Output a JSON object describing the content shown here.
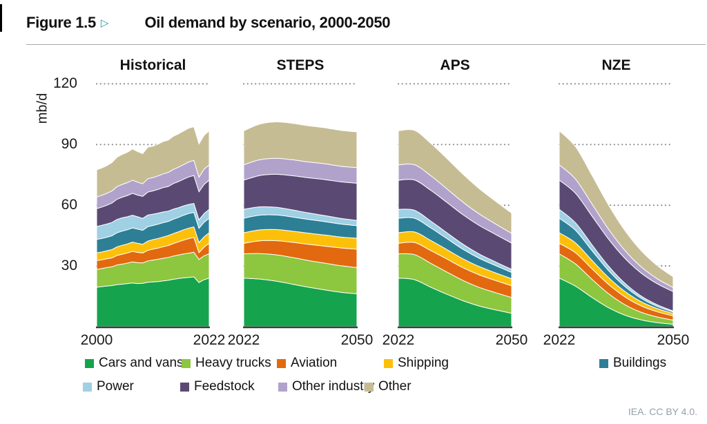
{
  "header": {
    "figure_label": "Figure 1.5",
    "figure_marker": "▷",
    "title": "Oil demand by scenario, 2000-2050"
  },
  "axis": {
    "unit_label": "mb/d",
    "ticks": [
      120,
      90,
      60,
      30
    ]
  },
  "footer": {
    "attribution": "IEA. CC BY 4.0."
  },
  "colors": {
    "accent_marker": "#2095b3",
    "gridline": "#8f8f8f",
    "axis_line": "#3a3a3a"
  },
  "chart_data": {
    "type": "area",
    "stacked": true,
    "title": "Oil demand by scenario, 2000-2050",
    "ylabel": "mb/d",
    "unit": "mb/d",
    "ylim": [
      0,
      130
    ],
    "gridlines": [
      30,
      60,
      90,
      120
    ],
    "grid_style": "dotted",
    "legend_position": "bottom",
    "series": [
      {
        "name": "Cars and vans",
        "color": "#16a34d"
      },
      {
        "name": "Heavy trucks",
        "color": "#8dc63f"
      },
      {
        "name": "Aviation",
        "color": "#e2690f"
      },
      {
        "name": "Shipping",
        "color": "#fdc00a"
      },
      {
        "name": "Buildings",
        "color": "#2d7f96"
      },
      {
        "name": "Power",
        "color": "#9fd0e4"
      },
      {
        "name": "Feedstock",
        "color": "#5a4a73"
      },
      {
        "name": "Other industry",
        "color": "#b1a2cc"
      },
      {
        "name": "Other",
        "color": "#c6bc93"
      }
    ],
    "panels": [
      {
        "title": "Historical",
        "smooth": false,
        "x_labels": [
          "2000",
          "2022"
        ],
        "years": [
          2000,
          2001,
          2002,
          2003,
          2004,
          2005,
          2006,
          2007,
          2008,
          2009,
          2010,
          2011,
          2012,
          2013,
          2014,
          2015,
          2016,
          2017,
          2018,
          2019,
          2020,
          2021,
          2022
        ],
        "values": [
          [
            19.5,
            19.8,
            20.1,
            20.3,
            20.8,
            21.0,
            21.3,
            21.6,
            21.3,
            21.4,
            21.9,
            22.1,
            22.3,
            22.6,
            22.9,
            23.4,
            23.8,
            24.1,
            24.3,
            24.6,
            21.8,
            23.2,
            24.0
          ],
          [
            8.8,
            8.9,
            9.1,
            9.3,
            9.7,
            9.9,
            10.1,
            10.4,
            10.3,
            10.1,
            10.6,
            10.8,
            11.0,
            11.2,
            11.3,
            11.5,
            11.6,
            11.8,
            12.0,
            12.2,
            11.4,
            11.8,
            12.0
          ],
          [
            4.4,
            4.3,
            4.3,
            4.4,
            4.7,
            4.9,
            5.0,
            5.2,
            5.1,
            4.9,
            5.2,
            5.4,
            5.5,
            5.7,
            5.9,
            6.2,
            6.5,
            6.9,
            7.2,
            7.3,
            3.4,
            4.3,
            5.2
          ],
          [
            3.8,
            3.9,
            4.0,
            4.1,
            4.3,
            4.4,
            4.5,
            4.6,
            4.5,
            4.3,
            4.6,
            4.7,
            4.8,
            4.8,
            4.9,
            4.9,
            5.0,
            5.1,
            5.2,
            5.2,
            5.0,
            5.1,
            5.2
          ],
          [
            6.6,
            6.7,
            6.7,
            6.8,
            6.9,
            7.0,
            7.0,
            7.0,
            7.0,
            6.9,
            7.1,
            7.0,
            7.0,
            7.1,
            7.0,
            7.1,
            7.1,
            7.2,
            7.2,
            7.2,
            7.0,
            7.2,
            7.2
          ],
          [
            6.4,
            6.5,
            6.5,
            6.6,
            6.6,
            6.6,
            6.4,
            6.3,
            6.1,
            5.9,
            5.8,
            5.6,
            5.5,
            5.3,
            5.1,
            5.0,
            4.8,
            4.6,
            4.5,
            4.4,
            4.2,
            4.3,
            4.4
          ],
          [
            8.8,
            9.0,
            9.3,
            9.6,
            10.0,
            10.2,
            10.5,
            10.8,
            10.7,
            10.9,
            11.3,
            11.5,
            11.7,
            12.0,
            12.2,
            12.6,
            12.9,
            13.2,
            13.6,
            13.8,
            13.9,
            14.4,
            14.4
          ],
          [
            5.8,
            5.8,
            5.9,
            6.0,
            6.2,
            6.3,
            6.4,
            6.5,
            6.4,
            6.2,
            6.6,
            6.6,
            6.7,
            6.8,
            6.9,
            7.0,
            7.1,
            7.2,
            7.4,
            7.5,
            7.2,
            7.5,
            7.6
          ],
          [
            13.4,
            13.5,
            13.7,
            14.0,
            14.6,
            14.8,
            15.0,
            15.4,
            15.1,
            14.9,
            15.6,
            15.5,
            15.7,
            16.0,
            16.0,
            16.4,
            16.5,
            16.6,
            16.7,
            16.6,
            16.4,
            16.7,
            16.8
          ]
        ]
      },
      {
        "title": "STEPS",
        "smooth": true,
        "x_labels": [
          "2022",
          "2050"
        ],
        "years": [
          2022,
          2026,
          2030,
          2034,
          2038,
          2042,
          2046,
          2050
        ],
        "values": [
          [
            24.0,
            23.5,
            22.5,
            21.0,
            19.5,
            18.2,
            17.0,
            16.2
          ],
          [
            12.0,
            12.6,
            13.0,
            13.2,
            13.2,
            13.2,
            13.1,
            13.0
          ],
          [
            5.2,
            6.3,
            7.0,
            7.5,
            8.0,
            8.4,
            8.8,
            9.1
          ],
          [
            5.2,
            5.4,
            5.5,
            5.5,
            5.5,
            5.5,
            5.4,
            5.4
          ],
          [
            7.2,
            7.3,
            7.2,
            7.0,
            6.8,
            6.6,
            6.4,
            6.2
          ],
          [
            4.4,
            4.1,
            3.8,
            3.5,
            3.2,
            3.0,
            2.8,
            2.6
          ],
          [
            14.4,
            15.5,
            16.3,
            16.9,
            17.4,
            17.8,
            18.1,
            18.4
          ],
          [
            7.6,
            7.8,
            7.9,
            7.9,
            7.8,
            7.8,
            7.7,
            7.7
          ],
          [
            16.8,
            17.6,
            18.0,
            18.0,
            17.9,
            17.8,
            17.7,
            17.6
          ]
        ]
      },
      {
        "title": "APS",
        "smooth": true,
        "x_labels": [
          "2022",
          "2050"
        ],
        "years": [
          2022,
          2026,
          2030,
          2034,
          2038,
          2042,
          2046,
          2050
        ],
        "values": [
          [
            24.0,
            23.2,
            19.5,
            16.0,
            12.8,
            10.2,
            8.3,
            6.6
          ],
          [
            12.0,
            12.4,
            11.8,
            11.0,
            10.0,
            9.2,
            8.5,
            7.8
          ],
          [
            5.2,
            6.0,
            6.3,
            6.4,
            6.3,
            6.2,
            6.0,
            5.8
          ],
          [
            5.2,
            5.2,
            5.0,
            4.7,
            4.4,
            4.1,
            3.8,
            3.5
          ],
          [
            7.2,
            6.8,
            6.2,
            5.4,
            4.7,
            4.1,
            3.6,
            3.1
          ],
          [
            4.4,
            3.9,
            3.4,
            2.9,
            2.5,
            2.1,
            1.8,
            1.5
          ],
          [
            14.4,
            15.0,
            15.2,
            15.0,
            14.6,
            14.1,
            13.6,
            13.0
          ],
          [
            7.6,
            7.5,
            7.2,
            6.7,
            6.2,
            5.7,
            5.2,
            4.8
          ],
          [
            16.8,
            17.0,
            16.0,
            15.0,
            13.8,
            12.5,
            11.2,
            10.0
          ]
        ]
      },
      {
        "title": "NZE",
        "smooth": true,
        "x_labels": [
          "2022",
          "2050"
        ],
        "years": [
          2022,
          2026,
          2030,
          2034,
          2038,
          2042,
          2046,
          2050
        ],
        "values": [
          [
            24.0,
            20.0,
            14.5,
            9.5,
            5.8,
            3.4,
            2.0,
            1.2
          ],
          [
            12.0,
            11.0,
            9.0,
            7.0,
            5.2,
            3.8,
            2.8,
            2.0
          ],
          [
            5.2,
            5.5,
            5.2,
            4.6,
            3.9,
            3.2,
            2.6,
            2.1
          ],
          [
            5.2,
            4.9,
            4.2,
            3.4,
            2.7,
            2.1,
            1.6,
            1.2
          ],
          [
            7.2,
            6.2,
            4.8,
            3.5,
            2.5,
            1.7,
            1.1,
            0.7
          ],
          [
            4.4,
            3.7,
            2.9,
            2.2,
            1.6,
            1.1,
            0.8,
            0.5
          ],
          [
            14.4,
            14.6,
            14.2,
            13.4,
            12.4,
            11.4,
            10.4,
            9.6
          ],
          [
            7.6,
            7.0,
            6.0,
            4.9,
            3.9,
            3.1,
            2.5,
            2.0
          ],
          [
            16.8,
            16.0,
            14.2,
            12.0,
            9.9,
            8.0,
            6.5,
            5.3
          ]
        ]
      }
    ]
  },
  "legend": {
    "row1": [
      "Cars and vans",
      "Heavy trucks",
      "Aviation",
      "Shipping",
      "Buildings"
    ],
    "row2": [
      "Power",
      "Feedstock",
      "Other industry",
      "Other"
    ]
  }
}
